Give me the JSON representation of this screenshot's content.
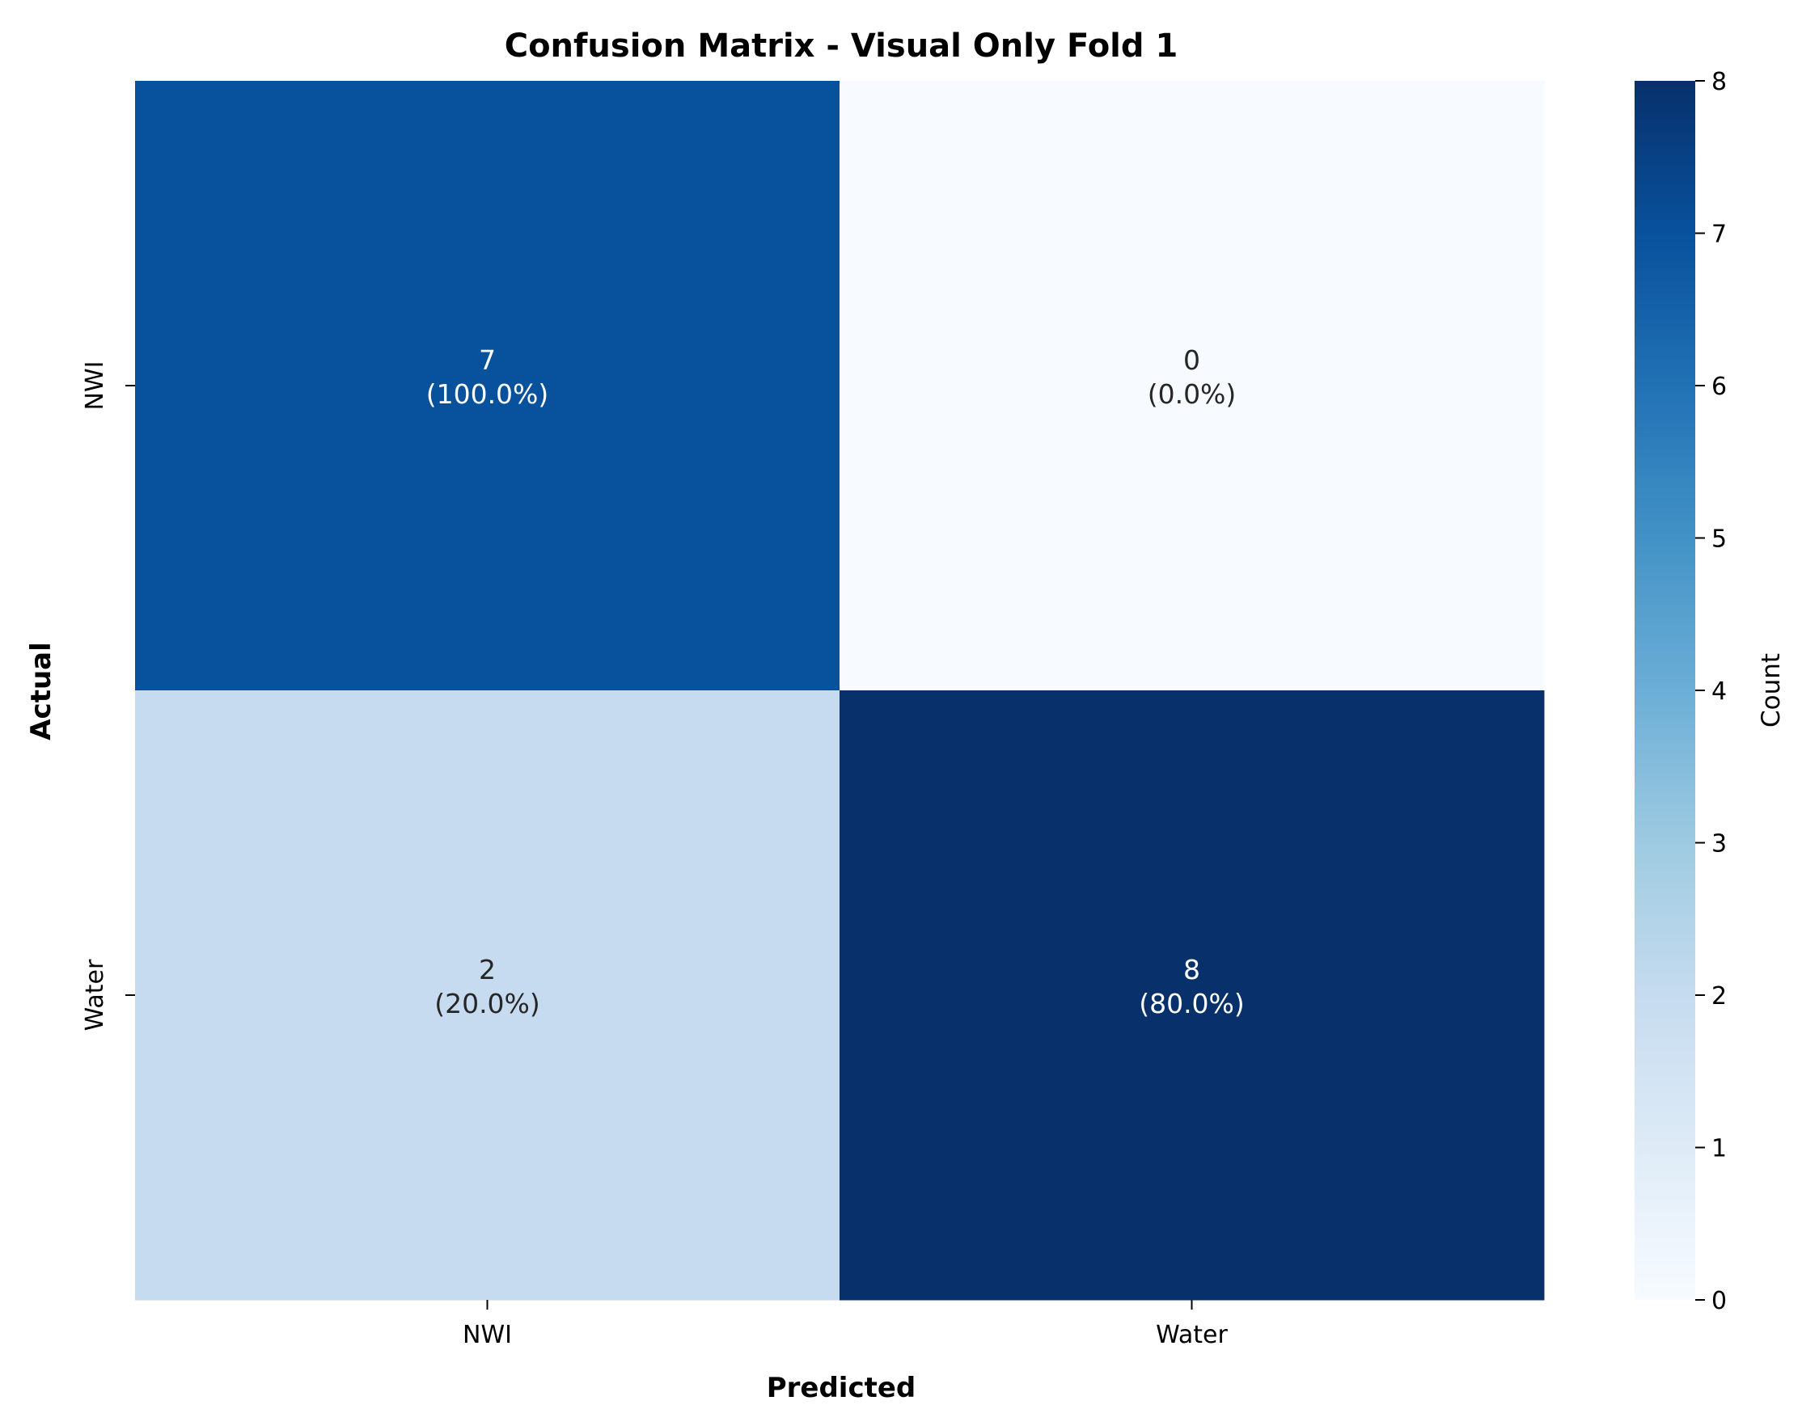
{
  "chart_data": {
    "type": "heatmap",
    "title": "Confusion Matrix - Visual Only Fold 1",
    "xlabel": "Predicted",
    "ylabel": "Actual",
    "x_categories": [
      "NWI",
      "Water"
    ],
    "y_categories": [
      "NWI",
      "Water"
    ],
    "values": [
      [
        7,
        0
      ],
      [
        2,
        8
      ]
    ],
    "cell_annotations": [
      [
        {
          "count": "7",
          "percent": "(100.0%)"
        },
        {
          "count": "0",
          "percent": "(0.0%)"
        }
      ],
      [
        {
          "count": "2",
          "percent": "(20.0%)"
        },
        {
          "count": "8",
          "percent": "(80.0%)"
        }
      ]
    ],
    "colormap": "Blues",
    "colorbar": {
      "label": "Count",
      "range": [
        0,
        8
      ],
      "ticks": [
        "0",
        "1",
        "2",
        "3",
        "4",
        "5",
        "6",
        "7",
        "8"
      ]
    },
    "colors": {
      "min": "#f7fbff",
      "max": "#08306b",
      "text_dark": "#262626",
      "text_light": "#ffffff"
    }
  }
}
